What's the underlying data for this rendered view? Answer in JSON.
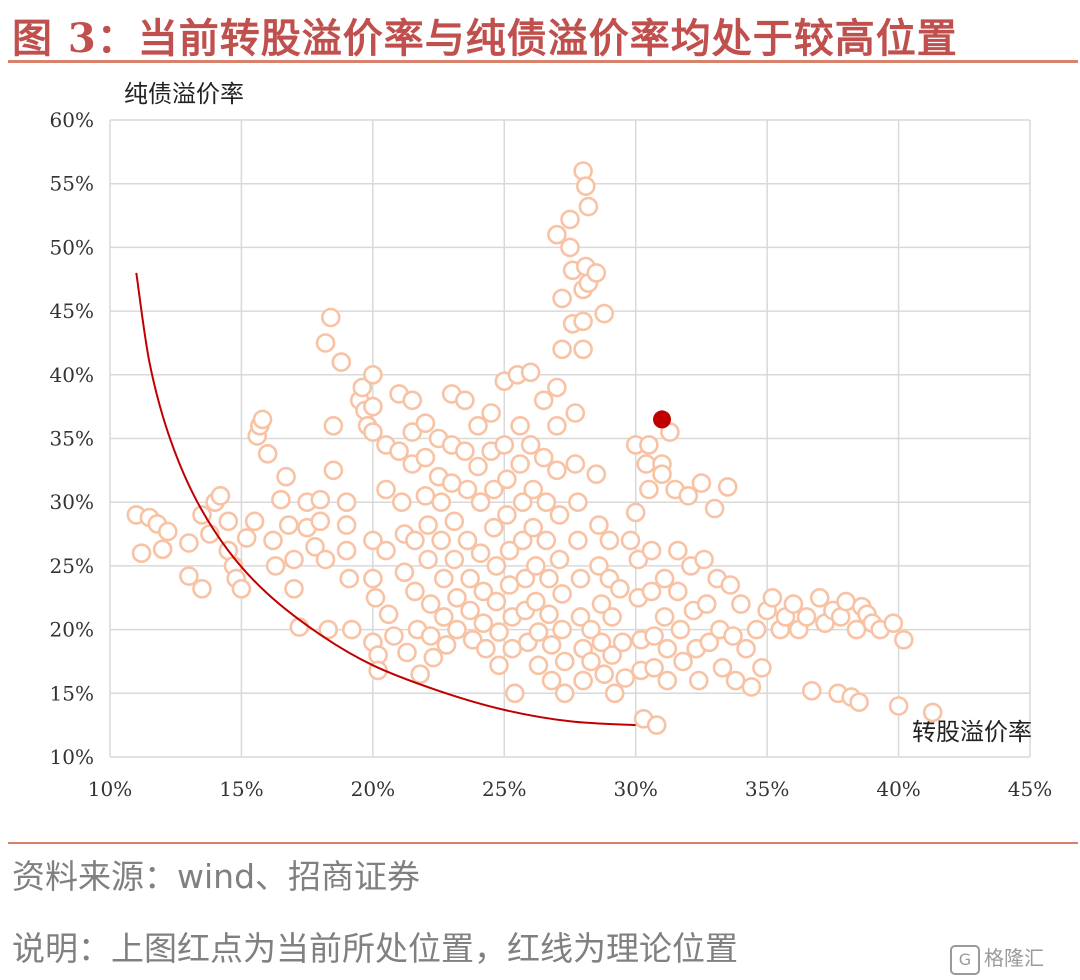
{
  "title": "图 3：当前转股溢价率与纯债溢价率均处于较高位置",
  "source_text": "资料来源：wind、招商证券",
  "note_text": "说明：上图红点为当前所处位置，红线为理论位置",
  "watermark": {
    "icon": "G",
    "text": "格隆汇"
  },
  "colors": {
    "points": "#f8c3a4",
    "current": "#c00000",
    "curve": "#c00000",
    "title": "#c0504d",
    "grid": "#d9d9d9"
  },
  "chart_data": {
    "type": "scatter",
    "title": "",
    "xlabel": "转股溢价率",
    "ylabel": "纯债溢价率",
    "xlim": [
      0.1,
      0.45
    ],
    "ylim": [
      0.1,
      0.6
    ],
    "x_ticks": [
      "10%",
      "15%",
      "20%",
      "25%",
      "30%",
      "35%",
      "40%",
      "45%"
    ],
    "y_ticks": [
      "10%",
      "15%",
      "20%",
      "25%",
      "30%",
      "35%",
      "40%",
      "45%",
      "50%",
      "55%",
      "60%"
    ],
    "grid": true,
    "current_point": {
      "x": 0.31,
      "y": 0.365
    },
    "theoretical_curve": [
      [
        0.11,
        0.48
      ],
      [
        0.115,
        0.41
      ],
      [
        0.122,
        0.355
      ],
      [
        0.132,
        0.305
      ],
      [
        0.145,
        0.262
      ],
      [
        0.16,
        0.228
      ],
      [
        0.18,
        0.196
      ],
      [
        0.2,
        0.172
      ],
      [
        0.225,
        0.152
      ],
      [
        0.25,
        0.137
      ],
      [
        0.275,
        0.128
      ],
      [
        0.3,
        0.125
      ]
    ],
    "points": [
      [
        0.11,
        0.29
      ],
      [
        0.112,
        0.26
      ],
      [
        0.115,
        0.288
      ],
      [
        0.118,
        0.283
      ],
      [
        0.12,
        0.263
      ],
      [
        0.122,
        0.277
      ],
      [
        0.13,
        0.268
      ],
      [
        0.13,
        0.242
      ],
      [
        0.135,
        0.29
      ],
      [
        0.135,
        0.232
      ],
      [
        0.138,
        0.275
      ],
      [
        0.14,
        0.3
      ],
      [
        0.142,
        0.305
      ],
      [
        0.145,
        0.285
      ],
      [
        0.145,
        0.262
      ],
      [
        0.147,
        0.25
      ],
      [
        0.148,
        0.24
      ],
      [
        0.15,
        0.232
      ],
      [
        0.152,
        0.272
      ],
      [
        0.155,
        0.285
      ],
      [
        0.156,
        0.352
      ],
      [
        0.157,
        0.36
      ],
      [
        0.158,
        0.365
      ],
      [
        0.16,
        0.338
      ],
      [
        0.162,
        0.27
      ],
      [
        0.163,
        0.25
      ],
      [
        0.165,
        0.302
      ],
      [
        0.167,
        0.32
      ],
      [
        0.168,
        0.282
      ],
      [
        0.17,
        0.255
      ],
      [
        0.17,
        0.232
      ],
      [
        0.172,
        0.202
      ],
      [
        0.175,
        0.3
      ],
      [
        0.175,
        0.28
      ],
      [
        0.178,
        0.265
      ],
      [
        0.18,
        0.302
      ],
      [
        0.18,
        0.285
      ],
      [
        0.182,
        0.255
      ],
      [
        0.183,
        0.2
      ],
      [
        0.185,
        0.325
      ],
      [
        0.185,
        0.36
      ],
      [
        0.182,
        0.425
      ],
      [
        0.184,
        0.445
      ],
      [
        0.188,
        0.41
      ],
      [
        0.19,
        0.3
      ],
      [
        0.19,
        0.282
      ],
      [
        0.19,
        0.262
      ],
      [
        0.191,
        0.24
      ],
      [
        0.192,
        0.2
      ],
      [
        0.195,
        0.38
      ],
      [
        0.196,
        0.39
      ],
      [
        0.197,
        0.372
      ],
      [
        0.198,
        0.36
      ],
      [
        0.2,
        0.4
      ],
      [
        0.2,
        0.375
      ],
      [
        0.2,
        0.355
      ],
      [
        0.2,
        0.27
      ],
      [
        0.2,
        0.24
      ],
      [
        0.201,
        0.225
      ],
      [
        0.2,
        0.19
      ],
      [
        0.202,
        0.18
      ],
      [
        0.202,
        0.168
      ],
      [
        0.205,
        0.345
      ],
      [
        0.205,
        0.31
      ],
      [
        0.205,
        0.262
      ],
      [
        0.206,
        0.212
      ],
      [
        0.208,
        0.195
      ],
      [
        0.21,
        0.385
      ],
      [
        0.21,
        0.34
      ],
      [
        0.211,
        0.3
      ],
      [
        0.212,
        0.275
      ],
      [
        0.212,
        0.245
      ],
      [
        0.213,
        0.182
      ],
      [
        0.215,
        0.38
      ],
      [
        0.215,
        0.355
      ],
      [
        0.215,
        0.33
      ],
      [
        0.216,
        0.27
      ],
      [
        0.216,
        0.23
      ],
      [
        0.217,
        0.2
      ],
      [
        0.218,
        0.165
      ],
      [
        0.22,
        0.362
      ],
      [
        0.22,
        0.335
      ],
      [
        0.22,
        0.305
      ],
      [
        0.221,
        0.282
      ],
      [
        0.221,
        0.255
      ],
      [
        0.222,
        0.22
      ],
      [
        0.222,
        0.195
      ],
      [
        0.223,
        0.178
      ],
      [
        0.225,
        0.35
      ],
      [
        0.225,
        0.32
      ],
      [
        0.226,
        0.3
      ],
      [
        0.226,
        0.27
      ],
      [
        0.227,
        0.24
      ],
      [
        0.227,
        0.21
      ],
      [
        0.228,
        0.188
      ],
      [
        0.23,
        0.385
      ],
      [
        0.23,
        0.345
      ],
      [
        0.23,
        0.315
      ],
      [
        0.231,
        0.285
      ],
      [
        0.231,
        0.255
      ],
      [
        0.232,
        0.225
      ],
      [
        0.232,
        0.2
      ],
      [
        0.235,
        0.38
      ],
      [
        0.235,
        0.34
      ],
      [
        0.236,
        0.31
      ],
      [
        0.236,
        0.27
      ],
      [
        0.237,
        0.24
      ],
      [
        0.237,
        0.215
      ],
      [
        0.238,
        0.192
      ],
      [
        0.24,
        0.36
      ],
      [
        0.24,
        0.328
      ],
      [
        0.241,
        0.3
      ],
      [
        0.241,
        0.26
      ],
      [
        0.242,
        0.23
      ],
      [
        0.242,
        0.205
      ],
      [
        0.243,
        0.185
      ],
      [
        0.245,
        0.37
      ],
      [
        0.245,
        0.34
      ],
      [
        0.246,
        0.31
      ],
      [
        0.246,
        0.28
      ],
      [
        0.247,
        0.25
      ],
      [
        0.247,
        0.222
      ],
      [
        0.248,
        0.198
      ],
      [
        0.248,
        0.172
      ],
      [
        0.25,
        0.395
      ],
      [
        0.25,
        0.345
      ],
      [
        0.251,
        0.318
      ],
      [
        0.251,
        0.29
      ],
      [
        0.252,
        0.262
      ],
      [
        0.252,
        0.235
      ],
      [
        0.253,
        0.21
      ],
      [
        0.253,
        0.185
      ],
      [
        0.254,
        0.15
      ],
      [
        0.255,
        0.4
      ],
      [
        0.256,
        0.36
      ],
      [
        0.256,
        0.33
      ],
      [
        0.257,
        0.3
      ],
      [
        0.257,
        0.27
      ],
      [
        0.258,
        0.24
      ],
      [
        0.258,
        0.215
      ],
      [
        0.259,
        0.19
      ],
      [
        0.26,
        0.402
      ],
      [
        0.26,
        0.345
      ],
      [
        0.261,
        0.31
      ],
      [
        0.261,
        0.28
      ],
      [
        0.262,
        0.25
      ],
      [
        0.262,
        0.222
      ],
      [
        0.263,
        0.198
      ],
      [
        0.263,
        0.172
      ],
      [
        0.265,
        0.38
      ],
      [
        0.265,
        0.335
      ],
      [
        0.266,
        0.3
      ],
      [
        0.266,
        0.27
      ],
      [
        0.267,
        0.24
      ],
      [
        0.267,
        0.212
      ],
      [
        0.268,
        0.188
      ],
      [
        0.268,
        0.16
      ],
      [
        0.27,
        0.39
      ],
      [
        0.27,
        0.36
      ],
      [
        0.27,
        0.325
      ],
      [
        0.271,
        0.29
      ],
      [
        0.271,
        0.255
      ],
      [
        0.272,
        0.228
      ],
      [
        0.272,
        0.2
      ],
      [
        0.273,
        0.175
      ],
      [
        0.273,
        0.15
      ],
      [
        0.272,
        0.46
      ],
      [
        0.27,
        0.51
      ],
      [
        0.272,
        0.42
      ],
      [
        0.275,
        0.5
      ],
      [
        0.275,
        0.522
      ],
      [
        0.276,
        0.482
      ],
      [
        0.276,
        0.44
      ],
      [
        0.277,
        0.37
      ],
      [
        0.277,
        0.33
      ],
      [
        0.278,
        0.3
      ],
      [
        0.278,
        0.27
      ],
      [
        0.279,
        0.24
      ],
      [
        0.279,
        0.21
      ],
      [
        0.28,
        0.185
      ],
      [
        0.28,
        0.16
      ],
      [
        0.28,
        0.56
      ],
      [
        0.281,
        0.548
      ],
      [
        0.282,
        0.532
      ],
      [
        0.281,
        0.485
      ],
      [
        0.28,
        0.467
      ],
      [
        0.282,
        0.472
      ],
      [
        0.285,
        0.48
      ],
      [
        0.28,
        0.442
      ],
      [
        0.28,
        0.42
      ],
      [
        0.283,
        0.2
      ],
      [
        0.283,
        0.175
      ],
      [
        0.285,
        0.322
      ],
      [
        0.286,
        0.282
      ],
      [
        0.286,
        0.25
      ],
      [
        0.287,
        0.22
      ],
      [
        0.287,
        0.19
      ],
      [
        0.288,
        0.165
      ],
      [
        0.288,
        0.448
      ],
      [
        0.29,
        0.27
      ],
      [
        0.29,
        0.24
      ],
      [
        0.291,
        0.21
      ],
      [
        0.291,
        0.18
      ],
      [
        0.292,
        0.15
      ],
      [
        0.294,
        0.232
      ],
      [
        0.295,
        0.19
      ],
      [
        0.296,
        0.162
      ],
      [
        0.298,
        0.27
      ],
      [
        0.3,
        0.345
      ],
      [
        0.3,
        0.292
      ],
      [
        0.301,
        0.255
      ],
      [
        0.301,
        0.225
      ],
      [
        0.302,
        0.192
      ],
      [
        0.302,
        0.168
      ],
      [
        0.303,
        0.13
      ],
      [
        0.304,
        0.33
      ],
      [
        0.305,
        0.345
      ],
      [
        0.305,
        0.31
      ],
      [
        0.306,
        0.262
      ],
      [
        0.306,
        0.23
      ],
      [
        0.307,
        0.195
      ],
      [
        0.307,
        0.17
      ],
      [
        0.308,
        0.125
      ],
      [
        0.31,
        0.33
      ],
      [
        0.31,
        0.322
      ],
      [
        0.311,
        0.24
      ],
      [
        0.311,
        0.21
      ],
      [
        0.312,
        0.185
      ],
      [
        0.312,
        0.16
      ],
      [
        0.313,
        0.355
      ],
      [
        0.315,
        0.31
      ],
      [
        0.316,
        0.262
      ],
      [
        0.316,
        0.23
      ],
      [
        0.317,
        0.2
      ],
      [
        0.318,
        0.175
      ],
      [
        0.32,
        0.305
      ],
      [
        0.321,
        0.25
      ],
      [
        0.322,
        0.215
      ],
      [
        0.323,
        0.185
      ],
      [
        0.324,
        0.16
      ],
      [
        0.325,
        0.315
      ],
      [
        0.326,
        0.255
      ],
      [
        0.327,
        0.22
      ],
      [
        0.328,
        0.19
      ],
      [
        0.33,
        0.295
      ],
      [
        0.331,
        0.24
      ],
      [
        0.332,
        0.2
      ],
      [
        0.333,
        0.17
      ],
      [
        0.335,
        0.312
      ],
      [
        0.336,
        0.235
      ],
      [
        0.337,
        0.195
      ],
      [
        0.338,
        0.16
      ],
      [
        0.34,
        0.22
      ],
      [
        0.342,
        0.185
      ],
      [
        0.344,
        0.155
      ],
      [
        0.346,
        0.2
      ],
      [
        0.348,
        0.17
      ],
      [
        0.35,
        0.215
      ],
      [
        0.352,
        0.225
      ],
      [
        0.355,
        0.2
      ],
      [
        0.357,
        0.21
      ],
      [
        0.36,
        0.22
      ],
      [
        0.362,
        0.2
      ],
      [
        0.365,
        0.21
      ],
      [
        0.367,
        0.152
      ],
      [
        0.37,
        0.225
      ],
      [
        0.372,
        0.205
      ],
      [
        0.375,
        0.215
      ],
      [
        0.377,
        0.15
      ],
      [
        0.378,
        0.21
      ],
      [
        0.38,
        0.222
      ],
      [
        0.382,
        0.147
      ],
      [
        0.384,
        0.2
      ],
      [
        0.385,
        0.143
      ],
      [
        0.386,
        0.218
      ],
      [
        0.388,
        0.212
      ],
      [
        0.39,
        0.205
      ],
      [
        0.393,
        0.2
      ],
      [
        0.398,
        0.205
      ],
      [
        0.4,
        0.14
      ],
      [
        0.402,
        0.192
      ],
      [
        0.413,
        0.135
      ]
    ]
  }
}
